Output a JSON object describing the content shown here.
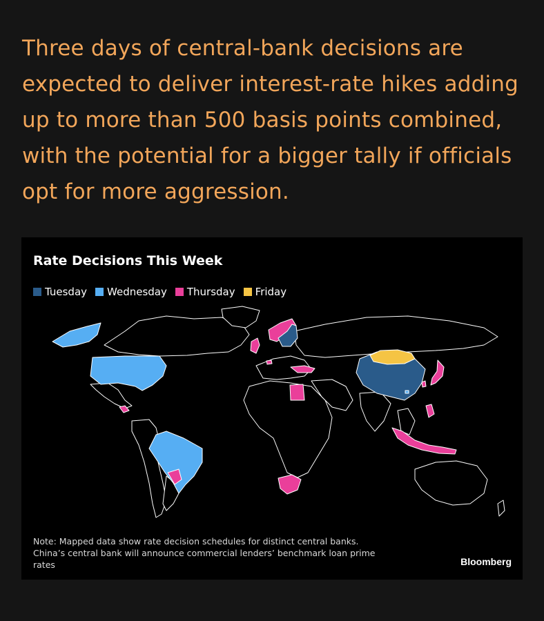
{
  "headline": [
    "Three days of central-bank decisions are",
    "expected to deliver interest-rate hikes adding",
    "up to more than 500 basis points combined,",
    "with the potential for a bigger tally if officials",
    "opt for more aggression."
  ],
  "card": {
    "title": "Rate Decisions This Week",
    "legend": [
      {
        "label": "Tuesday",
        "color": "#2a5b8a"
      },
      {
        "label": "Wednesday",
        "color": "#56aef3"
      },
      {
        "label": "Thursday",
        "color": "#ea3f9a"
      },
      {
        "label": "Friday",
        "color": "#f5c444"
      }
    ],
    "note": [
      "Note: Mapped data show rate decision schedules for distinct central banks.",
      "China’s central bank will announce commercial lenders’ benchmark loan prime",
      "rates"
    ],
    "source": "Bloomberg"
  },
  "map_regions": [
    {
      "name": "china",
      "day": "Tuesday"
    },
    {
      "name": "australia",
      "day": ""
    },
    {
      "name": "united-states",
      "day": "Wednesday"
    },
    {
      "name": "alaska",
      "day": "Wednesday"
    },
    {
      "name": "brazil",
      "day": "Wednesday"
    },
    {
      "name": "hong-kong",
      "day": "Wednesday"
    },
    {
      "name": "sweden",
      "day": "Tuesday"
    },
    {
      "name": "norway",
      "day": "Thursday"
    },
    {
      "name": "switzerland",
      "day": "Thursday"
    },
    {
      "name": "united-kingdom",
      "day": "Thursday"
    },
    {
      "name": "turkey",
      "day": "Thursday"
    },
    {
      "name": "egypt",
      "day": "Thursday"
    },
    {
      "name": "south-africa",
      "day": "Thursday"
    },
    {
      "name": "japan",
      "day": "Thursday"
    },
    {
      "name": "taiwan",
      "day": "Thursday"
    },
    {
      "name": "philippines",
      "day": "Thursday"
    },
    {
      "name": "indonesia",
      "day": "Thursday"
    },
    {
      "name": "paraguay",
      "day": "Thursday"
    },
    {
      "name": "central-america",
      "day": "Thursday"
    },
    {
      "name": "mongolia",
      "day": "Friday"
    }
  ]
}
